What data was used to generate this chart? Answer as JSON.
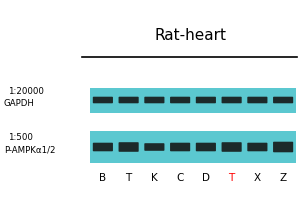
{
  "bg_color": "#ffffff",
  "lane_labels": [
    "B",
    "T",
    "K",
    "C",
    "D",
    "T",
    "X",
    "Z"
  ],
  "lane_label_colors": [
    "black",
    "black",
    "black",
    "black",
    "black",
    "red",
    "black",
    "black"
  ],
  "band1_label": "P-AMPKα1/2",
  "band1_dilution": "1:500",
  "band2_label": "GAPDH",
  "band2_dilution": "1:20000",
  "footer_label": "Rat-heart",
  "blot_bg_color": "#5bc8d0",
  "band_color": "#1c2a2a",
  "fig_width": 3.0,
  "fig_height": 2.0,
  "dpi": 100
}
